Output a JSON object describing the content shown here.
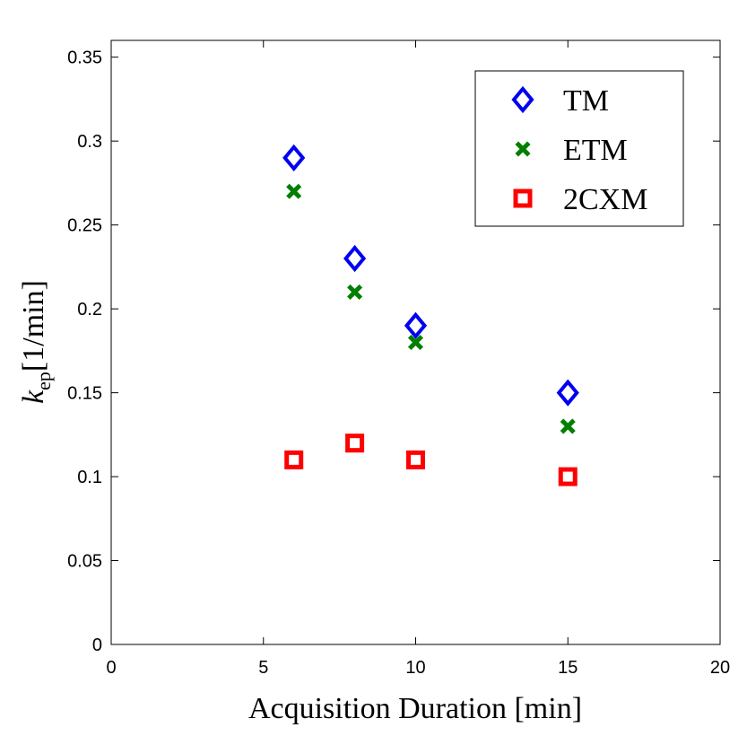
{
  "chart_data": {
    "type": "scatter",
    "title": "",
    "xlabel": "Acquisition Duration [min]",
    "ylabel": {
      "base": "k",
      "subscript": "ep",
      "rest": "[1/min]"
    },
    "xlim": [
      0,
      20
    ],
    "ylim": [
      0,
      0.36
    ],
    "xticks": [
      0,
      5,
      10,
      15,
      20
    ],
    "xtick_labels": [
      "0",
      "5",
      "10",
      "15",
      "20"
    ],
    "yticks": [
      0,
      0.05,
      0.1,
      0.15,
      0.2,
      0.25,
      0.3,
      0.35
    ],
    "ytick_labels": [
      "0",
      "0.05",
      "0.1",
      "0.15",
      "0.2",
      "0.25",
      "0.3",
      "0.35"
    ],
    "grid": false,
    "legend_position": "top-right",
    "series": [
      {
        "name": "TM",
        "marker": "diamond",
        "color": "#0000ee",
        "x": [
          6,
          8,
          10,
          15
        ],
        "y": [
          0.29,
          0.23,
          0.19,
          0.15
        ]
      },
      {
        "name": "ETM",
        "marker": "x",
        "color": "#007f00",
        "x": [
          6,
          8,
          10,
          15
        ],
        "y": [
          0.27,
          0.21,
          0.18,
          0.13
        ]
      },
      {
        "name": "2CXM",
        "marker": "square",
        "color": "#ff0000",
        "x": [
          6,
          8,
          10,
          15
        ],
        "y": [
          0.11,
          0.12,
          0.11,
          0.1
        ]
      }
    ]
  }
}
